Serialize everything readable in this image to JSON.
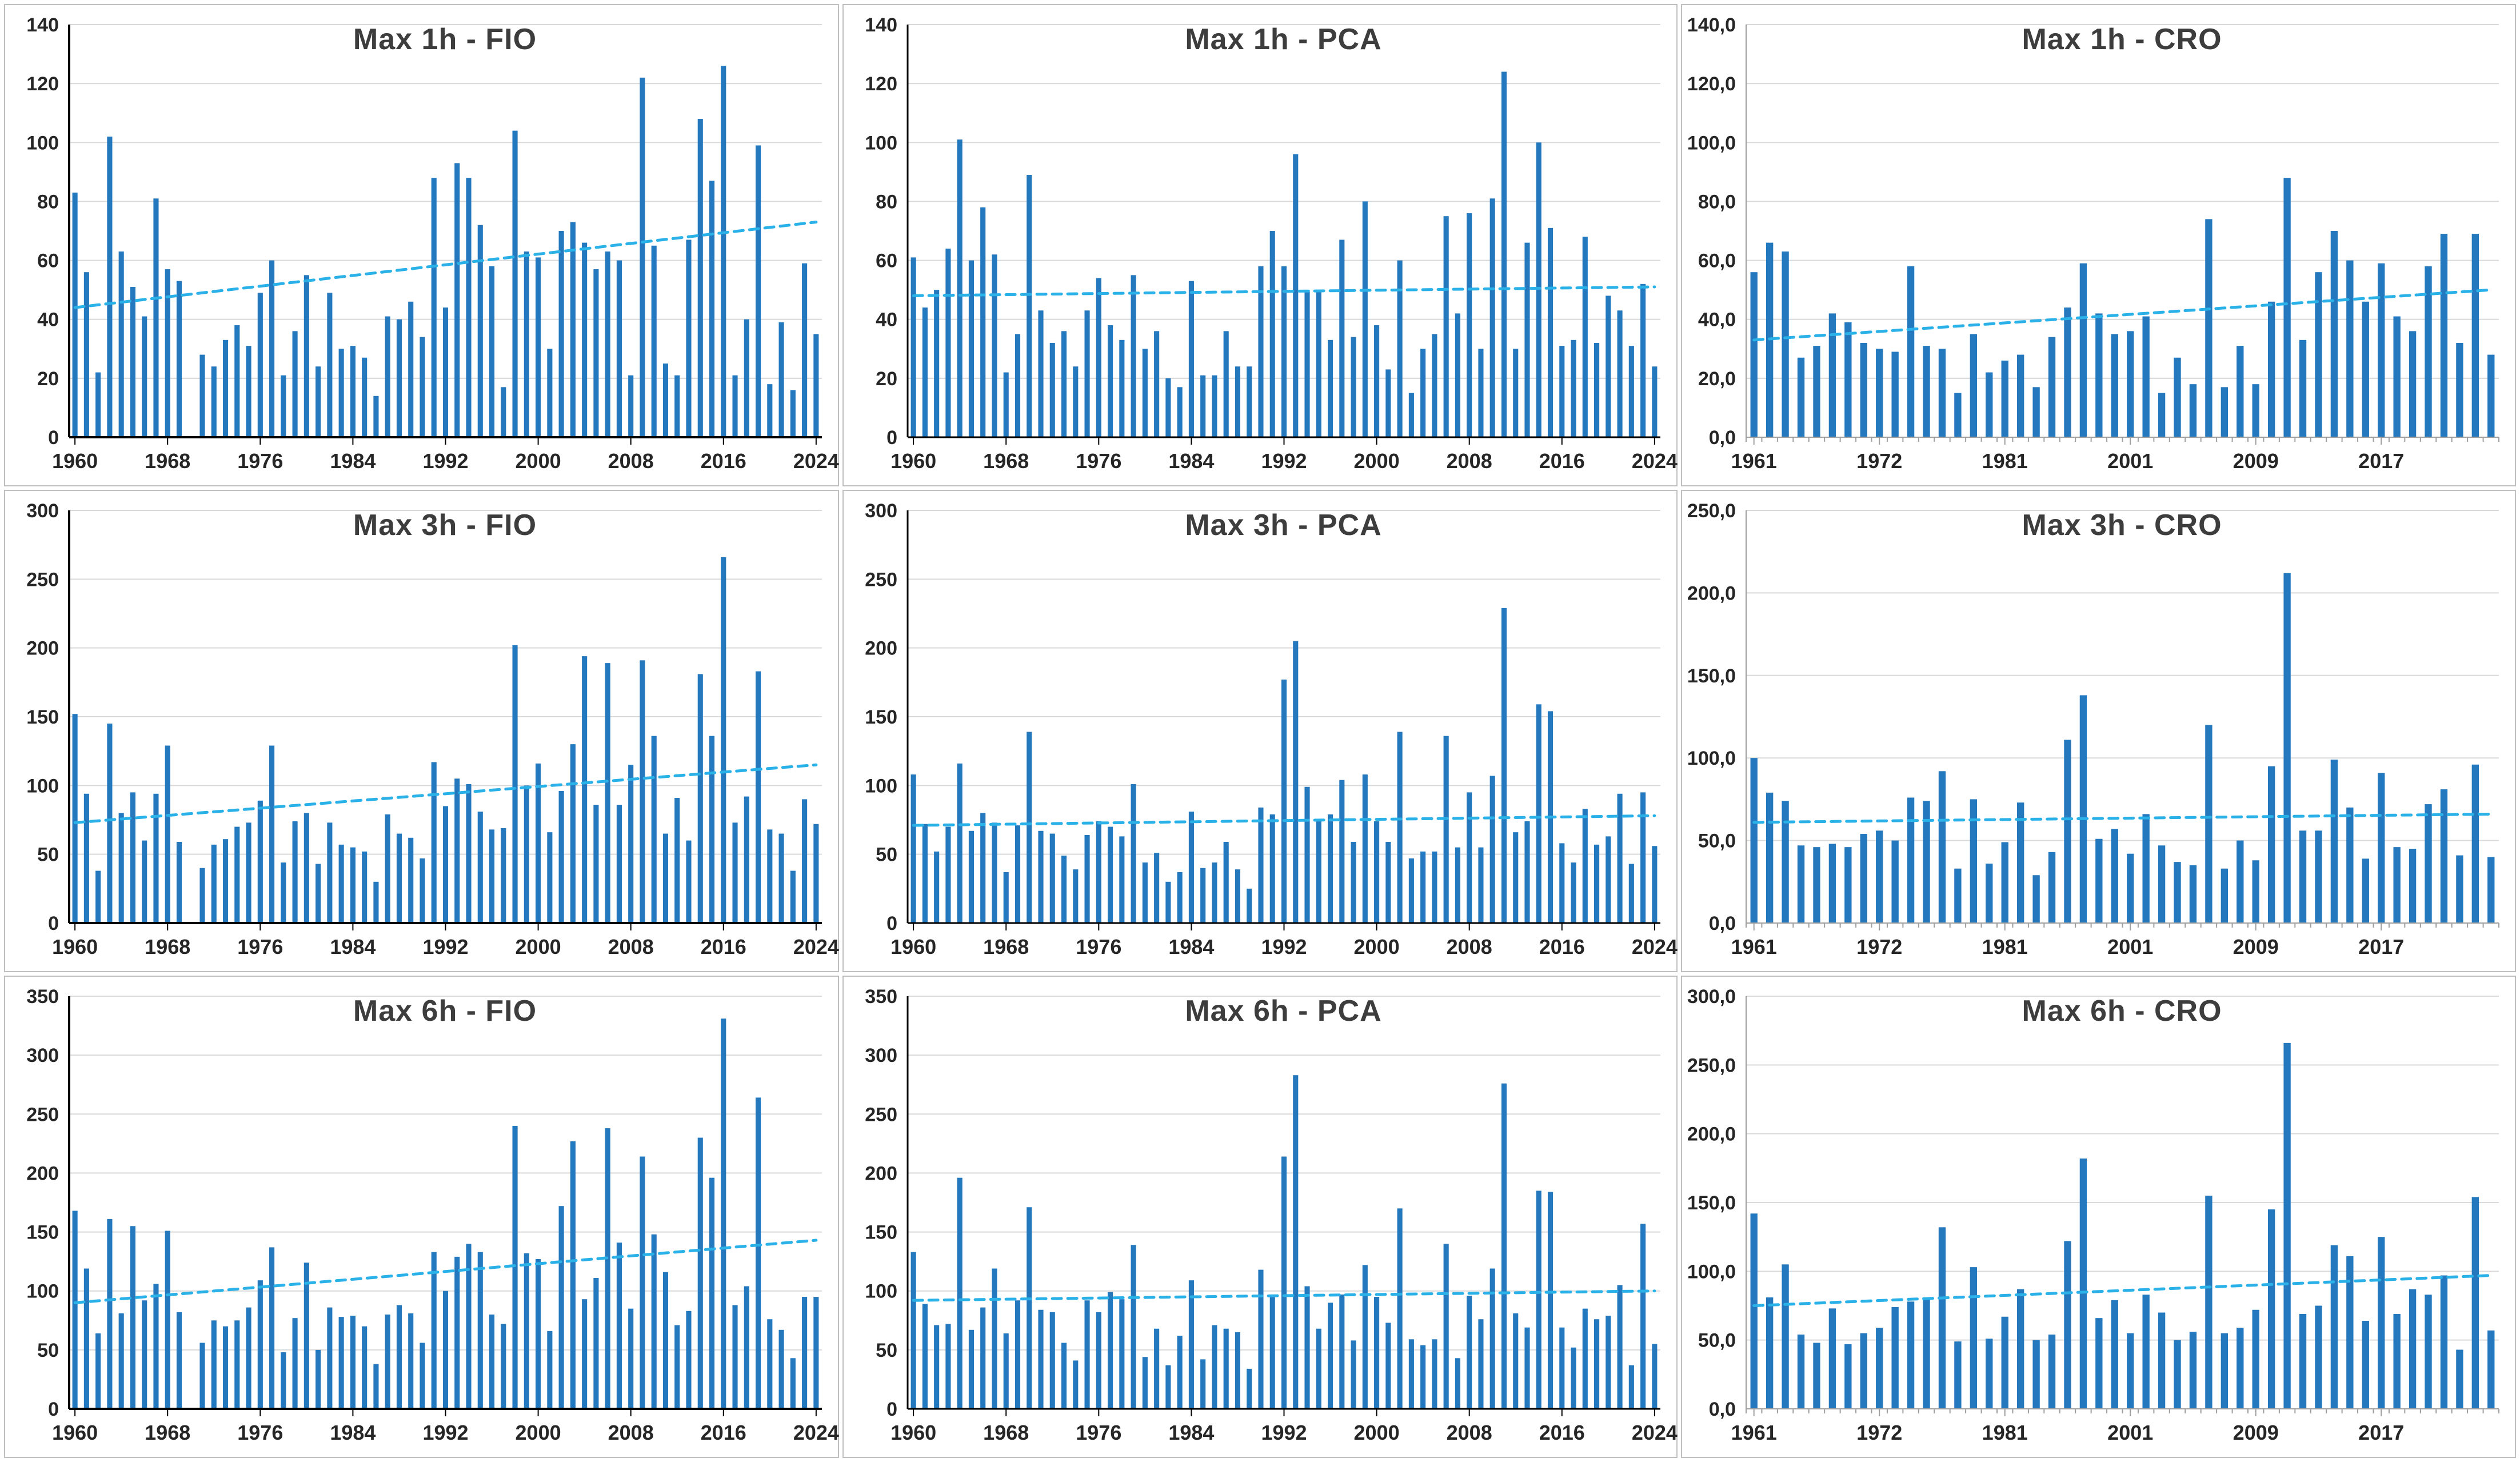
{
  "colors": {
    "bar": "#2478be",
    "trend": "#29b1e8",
    "gridline": "#d9d9d9",
    "axis_text": "#262626",
    "title_text": "#3d3d3d",
    "panel_border": "#bfbfbf",
    "dark_axis": "#000000",
    "light_axis": "#a0a0a0"
  },
  "chart_data": [
    {
      "type": "bar",
      "title": "Max 1h - FIO",
      "duration": "Max 1h",
      "station": "FIO",
      "y_axis": {
        "max": 140,
        "step": 20,
        "tick_labels": [
          "0",
          "20",
          "40",
          "60",
          "80",
          "100",
          "120",
          "140"
        ]
      },
      "x_axis": {
        "tick_labels": [
          "1960",
          "1968",
          "1976",
          "1984",
          "1992",
          "2000",
          "2008",
          "2016",
          "2024"
        ],
        "positions": [
          0,
          8,
          16,
          24,
          32,
          40,
          48,
          56,
          64
        ],
        "minor_ticks": false
      },
      "years_start": 1960,
      "values": [
        83,
        56,
        22,
        102,
        63,
        51,
        41,
        81,
        57,
        53,
        null,
        28,
        24,
        33,
        38,
        31,
        49,
        60,
        21,
        36,
        55,
        24,
        49,
        30,
        31,
        27,
        14,
        41,
        40,
        46,
        34,
        88,
        44,
        93,
        88,
        72,
        58,
        17,
        104,
        63,
        61,
        30,
        70,
        73,
        66,
        57,
        63,
        60,
        21,
        122,
        65,
        25,
        21,
        67,
        108,
        87,
        126,
        21,
        40,
        99,
        18,
        39,
        16,
        59,
        35
      ],
      "trend": {
        "start": 44,
        "end": 73
      },
      "axis_color": "#000000",
      "axis_width": 4
    },
    {
      "type": "bar",
      "title": "Max 1h - PCA",
      "duration": "Max 1h",
      "station": "PCA",
      "y_axis": {
        "max": 140,
        "step": 20,
        "tick_labels": [
          "0",
          "20",
          "40",
          "60",
          "80",
          "100",
          "120",
          "140"
        ]
      },
      "x_axis": {
        "tick_labels": [
          "1960",
          "1968",
          "1976",
          "1984",
          "1992",
          "2000",
          "2008",
          "2016",
          "2024"
        ],
        "positions": [
          0,
          8,
          16,
          24,
          32,
          40,
          48,
          56,
          64
        ],
        "minor_ticks": false
      },
      "years_start": 1960,
      "values": [
        61,
        44,
        50,
        64,
        101,
        60,
        78,
        62,
        22,
        35,
        89,
        43,
        32,
        36,
        24,
        43,
        54,
        38,
        33,
        55,
        30,
        36,
        20,
        17,
        53,
        21,
        21,
        36,
        24,
        24,
        58,
        70,
        58,
        96,
        50,
        50,
        33,
        67,
        34,
        80,
        38,
        23,
        60,
        15,
        30,
        35,
        75,
        42,
        76,
        30,
        81,
        124,
        30,
        66,
        100,
        71,
        31,
        33,
        68,
        32,
        48,
        43,
        31,
        52,
        24
      ],
      "trend": {
        "start": 48,
        "end": 51
      },
      "axis_color": "#000000",
      "axis_width": 3
    },
    {
      "type": "bar",
      "title": "Max 1h - CRO",
      "duration": "Max 1h",
      "station": "CRO",
      "y_axis": {
        "max": 140,
        "step": 20,
        "tick_labels": [
          "0,0",
          "20,0",
          "40,0",
          "60,0",
          "80,0",
          "100,0",
          "120,0",
          "140,0"
        ]
      },
      "x_axis": {
        "tick_labels": [
          "1961",
          "1972",
          "1981",
          "2001",
          "2009",
          "2017"
        ],
        "positions": [
          0,
          8,
          16,
          24,
          32,
          40
        ],
        "minor_ticks": true
      },
      "years_start": 1961,
      "values": [
        56,
        66,
        63,
        27,
        31,
        42,
        39,
        32,
        30,
        29,
        58,
        31,
        30,
        15,
        35,
        22,
        26,
        28,
        17,
        34,
        44,
        59,
        42,
        35,
        36,
        41,
        15,
        27,
        18,
        74,
        17,
        31,
        18,
        46,
        88,
        33,
        56,
        70,
        60,
        46,
        59,
        41,
        36,
        58,
        69,
        32,
        69,
        28
      ],
      "trend": {
        "start": 33,
        "end": 50
      },
      "axis_color": "#a0a0a0",
      "axis_width": 2
    },
    {
      "type": "bar",
      "title": "Max 3h - FIO",
      "duration": "Max 3h",
      "station": "FIO",
      "y_axis": {
        "max": 300,
        "step": 50,
        "tick_labels": [
          "0",
          "50",
          "100",
          "150",
          "200",
          "250",
          "300"
        ]
      },
      "x_axis": {
        "tick_labels": [
          "1960",
          "1968",
          "1976",
          "1984",
          "1992",
          "2000",
          "2008",
          "2016",
          "2024"
        ],
        "positions": [
          0,
          8,
          16,
          24,
          32,
          40,
          48,
          56,
          64
        ],
        "minor_ticks": false
      },
      "years_start": 1960,
      "values": [
        152,
        94,
        38,
        145,
        80,
        95,
        60,
        94,
        129,
        59,
        null,
        40,
        57,
        61,
        70,
        73,
        89,
        129,
        44,
        74,
        80,
        43,
        73,
        57,
        55,
        52,
        30,
        79,
        65,
        62,
        47,
        117,
        85,
        105,
        101,
        81,
        68,
        69,
        202,
        100,
        116,
        66,
        96,
        130,
        194,
        86,
        189,
        86,
        115,
        191,
        136,
        65,
        91,
        60,
        181,
        136,
        266,
        73,
        92,
        183,
        68,
        65,
        38,
        90,
        72
      ],
      "trend": {
        "start": 73,
        "end": 115
      },
      "axis_color": "#000000",
      "axis_width": 4
    },
    {
      "type": "bar",
      "title": "Max 3h - PCA",
      "duration": "Max 3h",
      "station": "PCA",
      "y_axis": {
        "max": 300,
        "step": 50,
        "tick_labels": [
          "0",
          "50",
          "100",
          "150",
          "200",
          "250",
          "300"
        ]
      },
      "x_axis": {
        "tick_labels": [
          "1960",
          "1968",
          "1976",
          "1984",
          "1992",
          "2000",
          "2008",
          "2016",
          "2024"
        ],
        "positions": [
          0,
          8,
          16,
          24,
          32,
          40,
          48,
          56,
          64
        ],
        "minor_ticks": false
      },
      "years_start": 1960,
      "values": [
        108,
        72,
        52,
        70,
        116,
        67,
        80,
        73,
        37,
        71,
        139,
        67,
        65,
        49,
        39,
        64,
        74,
        70,
        63,
        101,
        44,
        51,
        30,
        37,
        81,
        40,
        44,
        59,
        39,
        25,
        84,
        79,
        177,
        205,
        99,
        75,
        79,
        104,
        59,
        108,
        74,
        59,
        139,
        47,
        52,
        52,
        136,
        55,
        95,
        55,
        107,
        229,
        66,
        74,
        159,
        154,
        58,
        44,
        83,
        57,
        63,
        94,
        43,
        95,
        56
      ],
      "trend": {
        "start": 71,
        "end": 78
      },
      "axis_color": "#000000",
      "axis_width": 3
    },
    {
      "type": "bar",
      "title": "Max 3h - CRO",
      "duration": "Max 3h",
      "station": "CRO",
      "y_axis": {
        "max": 250,
        "step": 50,
        "tick_labels": [
          "0,0",
          "50,0",
          "100,0",
          "150,0",
          "200,0",
          "250,0"
        ]
      },
      "x_axis": {
        "tick_labels": [
          "1961",
          "1972",
          "1981",
          "2001",
          "2009",
          "2017"
        ],
        "positions": [
          0,
          8,
          16,
          24,
          32,
          40
        ],
        "minor_ticks": true
      },
      "years_start": 1961,
      "values": [
        100,
        79,
        74,
        47,
        46,
        48,
        46,
        54,
        56,
        50,
        76,
        74,
        92,
        33,
        75,
        36,
        49,
        73,
        29,
        43,
        111,
        138,
        51,
        57,
        42,
        66,
        47,
        37,
        35,
        120,
        33,
        50,
        38,
        95,
        212,
        56,
        56,
        99,
        70,
        39,
        91,
        46,
        45,
        72,
        81,
        41,
        96,
        40
      ],
      "trend": {
        "start": 61,
        "end": 66
      },
      "axis_color": "#a0a0a0",
      "axis_width": 2
    },
    {
      "type": "bar",
      "title": "Max 6h - FIO",
      "duration": "Max 6h",
      "station": "FIO",
      "y_axis": {
        "max": 350,
        "step": 50,
        "tick_labels": [
          "0",
          "50",
          "100",
          "150",
          "200",
          "250",
          "300",
          "350"
        ]
      },
      "x_axis": {
        "tick_labels": [
          "1960",
          "1968",
          "1976",
          "1984",
          "1992",
          "2000",
          "2008",
          "2016",
          "2024"
        ],
        "positions": [
          0,
          8,
          16,
          24,
          32,
          40,
          48,
          56,
          64
        ],
        "minor_ticks": false
      },
      "years_start": 1960,
      "values": [
        168,
        119,
        64,
        161,
        81,
        155,
        92,
        106,
        151,
        82,
        null,
        56,
        75,
        70,
        75,
        86,
        109,
        137,
        48,
        77,
        124,
        50,
        86,
        78,
        79,
        70,
        38,
        80,
        88,
        81,
        56,
        133,
        100,
        129,
        140,
        133,
        80,
        72,
        240,
        132,
        127,
        66,
        172,
        227,
        93,
        111,
        238,
        141,
        85,
        214,
        148,
        116,
        71,
        83,
        230,
        196,
        331,
        88,
        104,
        264,
        76,
        67,
        43,
        95,
        95
      ],
      "trend": {
        "start": 90,
        "end": 143
      },
      "axis_color": "#000000",
      "axis_width": 4
    },
    {
      "type": "bar",
      "title": "Max 6h - PCA",
      "duration": "Max 6h",
      "station": "PCA",
      "y_axis": {
        "max": 350,
        "step": 50,
        "tick_labels": [
          "0",
          "50",
          "100",
          "150",
          "200",
          "250",
          "300",
          "350"
        ]
      },
      "x_axis": {
        "tick_labels": [
          "1960",
          "1968",
          "1976",
          "1984",
          "1992",
          "2000",
          "2008",
          "2016",
          "2024"
        ],
        "positions": [
          0,
          8,
          16,
          24,
          32,
          40,
          48,
          56,
          64
        ],
        "minor_ticks": false
      },
      "years_start": 1960,
      "values": [
        133,
        89,
        71,
        72,
        196,
        67,
        86,
        119,
        64,
        92,
        171,
        84,
        82,
        56,
        41,
        92,
        82,
        99,
        93,
        139,
        44,
        68,
        37,
        62,
        109,
        42,
        71,
        68,
        65,
        34,
        118,
        95,
        214,
        283,
        104,
        68,
        90,
        97,
        58,
        122,
        95,
        73,
        170,
        59,
        54,
        59,
        140,
        43,
        96,
        76,
        119,
        276,
        81,
        69,
        185,
        184,
        69,
        52,
        85,
        76,
        79,
        105,
        37,
        157,
        55
      ],
      "trend": {
        "start": 92,
        "end": 100
      },
      "axis_color": "#000000",
      "axis_width": 3
    },
    {
      "type": "bar",
      "title": "Max 6h - CRO",
      "duration": "Max 6h",
      "station": "CRO",
      "y_axis": {
        "max": 300,
        "step": 50,
        "tick_labels": [
          "0,0",
          "50,0",
          "100,0",
          "150,0",
          "200,0",
          "250,0",
          "300,0"
        ]
      },
      "x_axis": {
        "tick_labels": [
          "1961",
          "1972",
          "1981",
          "2001",
          "2009",
          "2017"
        ],
        "positions": [
          0,
          8,
          16,
          24,
          32,
          40
        ],
        "minor_ticks": true
      },
      "years_start": 1961,
      "values": [
        142,
        81,
        105,
        54,
        48,
        73,
        47,
        55,
        59,
        74,
        78,
        81,
        132,
        49,
        103,
        51,
        67,
        87,
        50,
        54,
        122,
        182,
        66,
        79,
        55,
        83,
        70,
        50,
        56,
        155,
        55,
        59,
        72,
        145,
        266,
        69,
        75,
        119,
        111,
        64,
        125,
        69,
        87,
        83,
        97,
        43,
        154,
        57
      ],
      "trend": {
        "start": 75,
        "end": 97
      },
      "axis_color": "#a0a0a0",
      "axis_width": 2
    }
  ]
}
